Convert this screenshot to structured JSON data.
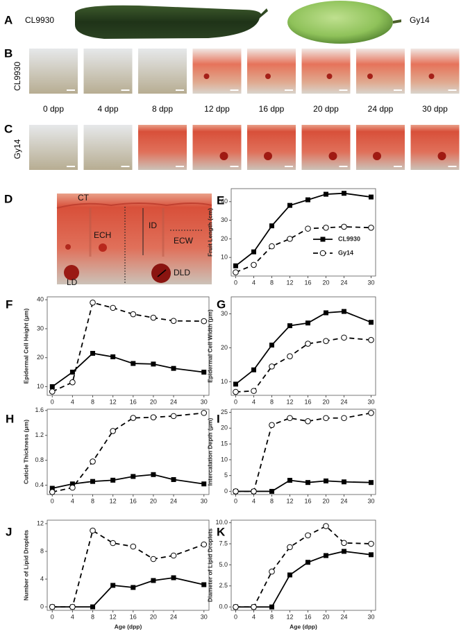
{
  "photos": {
    "A": {
      "label": "A",
      "left": "CL9930",
      "right": "Gy14"
    },
    "B": {
      "label": "B",
      "line": "CL9930",
      "ages": [
        "0 dpp",
        "4 dpp",
        "8 dpp",
        "12 dpp",
        "16 dpp",
        "20 dpp",
        "24 dpp",
        "30 dpp"
      ]
    },
    "C": {
      "label": "C",
      "line": "Gy14"
    },
    "D": {
      "label": "D",
      "annotations": [
        "CT",
        "ECH",
        "ID",
        "ECW",
        "LD",
        "DLD"
      ]
    }
  },
  "chart_data": [
    {
      "type": "line",
      "panel": "E",
      "ylabel": "Fruit Length (cm)",
      "x": [
        0,
        4,
        8,
        12,
        16,
        20,
        24,
        30
      ],
      "xlim": [
        -1,
        31
      ],
      "xticks": [
        0,
        4,
        8,
        12,
        16,
        20,
        24,
        30
      ],
      "ylim": [
        0,
        47
      ],
      "yticks": [
        10,
        20,
        30,
        40
      ],
      "legend": "center-right",
      "series": [
        {
          "name": "CL9930",
          "color": "#000000",
          "line_style": "solid",
          "marker": "square",
          "values": [
            5.5,
            13,
            27,
            38,
            41,
            44,
            44.5,
            42.5
          ]
        },
        {
          "name": "Gy14",
          "color": "#000000",
          "line_style": "dashed",
          "marker": "circle-open",
          "values": [
            2,
            6,
            16,
            20,
            25.5,
            26,
            26.5,
            26
          ]
        }
      ]
    },
    {
      "type": "line",
      "panel": "F",
      "ylabel": "Epidermal Cell Height (μm)",
      "x": [
        0,
        4,
        8,
        12,
        16,
        20,
        24,
        30
      ],
      "xlim": [
        -1,
        31
      ],
      "xticks": [
        0,
        4,
        8,
        12,
        16,
        20,
        24,
        30
      ],
      "ylim": [
        7,
        41
      ],
      "yticks": [
        10,
        20,
        30,
        40
      ],
      "series": [
        {
          "name": "CL9930",
          "color": "#000000",
          "line_style": "solid",
          "marker": "square",
          "values": [
            10,
            15,
            21.5,
            20.3,
            18,
            17.8,
            16.3,
            15
          ]
        },
        {
          "name": "Gy14",
          "color": "#000000",
          "line_style": "dashed",
          "marker": "circle-open",
          "values": [
            8.3,
            11.5,
            39,
            37.2,
            35,
            33.8,
            32.7,
            32.6
          ]
        }
      ]
    },
    {
      "type": "line",
      "panel": "G",
      "ylabel": "Epidermal Cell Width (μm)",
      "x": [
        0,
        4,
        8,
        12,
        16,
        20,
        24,
        30
      ],
      "xlim": [
        -1,
        31
      ],
      "xticks": [
        0,
        4,
        8,
        12,
        16,
        20,
        24,
        30
      ],
      "ylim": [
        6,
        35
      ],
      "yticks": [
        10,
        20,
        30
      ],
      "series": [
        {
          "name": "CL9930",
          "color": "#000000",
          "line_style": "solid",
          "marker": "square",
          "values": [
            9.3,
            13.5,
            20.8,
            26.5,
            27.3,
            30.3,
            30.7,
            27.5
          ]
        },
        {
          "name": "Gy14",
          "color": "#000000",
          "line_style": "dashed",
          "marker": "circle-open",
          "values": [
            7,
            7.3,
            14.5,
            17.5,
            21.2,
            22,
            23,
            22.3
          ]
        }
      ]
    },
    {
      "type": "line",
      "panel": "H",
      "ylabel": "Cuticle Thickness (μm)",
      "x": [
        0,
        4,
        8,
        12,
        16,
        20,
        24,
        30
      ],
      "xlim": [
        -1,
        31
      ],
      "xticks": [
        0,
        4,
        8,
        12,
        16,
        20,
        24,
        30
      ],
      "ylim": [
        0.25,
        1.62
      ],
      "yticks": [
        0.4,
        0.8,
        1.2,
        1.6
      ],
      "series": [
        {
          "name": "CL9930",
          "color": "#000000",
          "line_style": "solid",
          "marker": "square",
          "values": [
            0.35,
            0.42,
            0.46,
            0.48,
            0.54,
            0.57,
            0.49,
            0.42
          ]
        },
        {
          "name": "Gy14",
          "color": "#000000",
          "line_style": "dashed",
          "marker": "circle-open",
          "values": [
            0.29,
            0.36,
            0.78,
            1.27,
            1.48,
            1.49,
            1.51,
            1.56
          ]
        }
      ]
    },
    {
      "type": "line",
      "panel": "I",
      "ylabel": "Intercalation Depth (μm)",
      "x": [
        0,
        4,
        8,
        12,
        16,
        20,
        24,
        30
      ],
      "xlim": [
        -1,
        31
      ],
      "xticks": [
        0,
        4,
        8,
        12,
        16,
        20,
        24,
        30
      ],
      "ylim": [
        -1,
        26
      ],
      "yticks": [
        0,
        5,
        10,
        15,
        20,
        25
      ],
      "series": [
        {
          "name": "CL9930",
          "color": "#000000",
          "line_style": "solid",
          "marker": "square",
          "values": [
            0,
            0,
            0,
            3.5,
            2.8,
            3.3,
            3,
            2.8
          ]
        },
        {
          "name": "Gy14",
          "color": "#000000",
          "line_style": "dashed",
          "marker": "circle-open",
          "values": [
            0,
            0,
            21,
            23.2,
            22.2,
            23.2,
            23.2,
            24.8
          ]
        }
      ]
    },
    {
      "type": "line",
      "panel": "J",
      "ylabel": "Number of Lipid Droplets",
      "xlabel": "Age (dpp)",
      "x": [
        0,
        4,
        8,
        12,
        16,
        20,
        24,
        30
      ],
      "xlim": [
        -1,
        31
      ],
      "xticks": [
        0,
        4,
        8,
        12,
        16,
        20,
        24,
        30
      ],
      "ylim": [
        -0.5,
        12.5
      ],
      "yticks": [
        0,
        4,
        8,
        12
      ],
      "series": [
        {
          "name": "CL9930",
          "color": "#000000",
          "line_style": "solid",
          "marker": "square",
          "values": [
            0,
            0,
            0,
            3.1,
            2.8,
            3.8,
            4.2,
            3.2
          ]
        },
        {
          "name": "Gy14",
          "color": "#000000",
          "line_style": "dashed",
          "marker": "circle-open",
          "values": [
            0,
            0,
            11,
            9.2,
            8.7,
            6.9,
            7.4,
            9
          ]
        }
      ]
    },
    {
      "type": "line",
      "panel": "K",
      "ylabel": "Diameter of Lipid Droplets",
      "xlabel": "Age (dpp)",
      "x": [
        0,
        4,
        8,
        12,
        16,
        20,
        24,
        30
      ],
      "xlim": [
        -1,
        31
      ],
      "xticks": [
        0,
        4,
        8,
        12,
        16,
        20,
        24,
        30
      ],
      "ylim": [
        -0.4,
        10.3
      ],
      "yticks": [
        {
          "value": 0,
          "label": "0.0"
        },
        2.5,
        {
          "value": 5,
          "label": "5.0"
        },
        7.5,
        {
          "value": 10,
          "label": "10.0"
        }
      ],
      "series": [
        {
          "name": "CL9930",
          "color": "#000000",
          "line_style": "solid",
          "marker": "square",
          "values": [
            0,
            0,
            0,
            3.8,
            5.3,
            6.1,
            6.6,
            6.2
          ]
        },
        {
          "name": "Gy14",
          "color": "#000000",
          "line_style": "dashed",
          "marker": "circle-open",
          "values": [
            0,
            0,
            4.2,
            7.1,
            8.5,
            9.6,
            7.6,
            7.5
          ]
        }
      ]
    }
  ]
}
